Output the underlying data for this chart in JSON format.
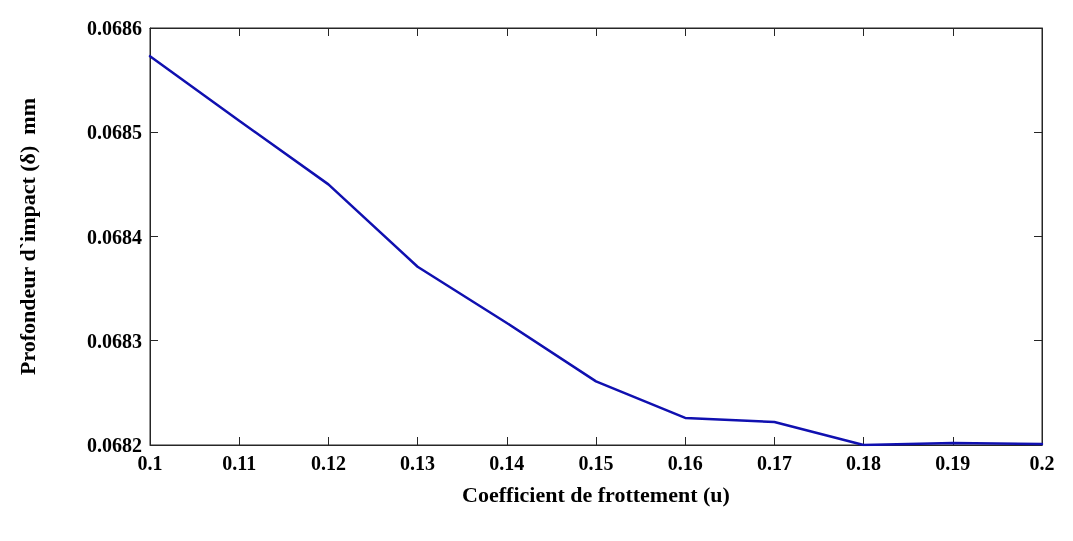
{
  "chart_data": {
    "type": "line",
    "xlabel": "Coefficient de frottement (u)",
    "ylabel": "Profondeur d`impact (δ)  mm",
    "x": [
      0.1,
      0.11,
      0.12,
      0.13,
      0.14,
      0.15,
      0.16,
      0.17,
      0.18,
      0.19,
      0.2
    ],
    "series": [
      {
        "color": "#1010b0",
        "values": [
          0.068573,
          0.068511,
          0.06845,
          0.068371,
          0.068317,
          0.068261,
          0.068226,
          0.068222,
          0.0682,
          0.068202,
          0.068201
        ]
      }
    ],
    "xlim": [
      0.1,
      0.2
    ],
    "xticks": [
      0.1,
      0.11,
      0.12,
      0.13,
      0.14,
      0.15,
      0.16,
      0.17,
      0.18,
      0.19,
      0.2
    ],
    "ylim": [
      0.0682,
      0.0686
    ],
    "yticks": [
      0.0682,
      0.0683,
      0.0684,
      0.0685,
      0.0686
    ],
    "marker": "none",
    "line_style": "solid"
  }
}
